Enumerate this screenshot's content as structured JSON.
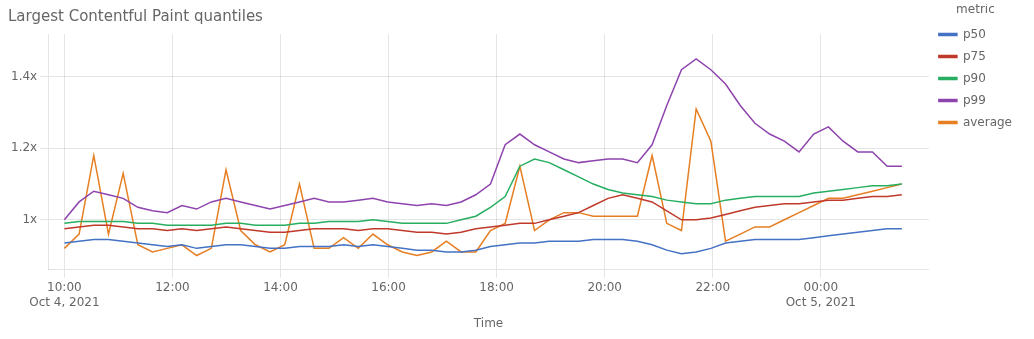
{
  "chart_data": {
    "type": "line",
    "title": "Largest Contentful Paint quantiles",
    "x_label": "Time",
    "legend_title": "metric",
    "legend": "right",
    "grid": true,
    "x": [
      10,
      10.27193,
      10.54386,
      10.815789,
      11.087719,
      11.359649,
      11.631579,
      11.903509,
      12.175439,
      12.447368,
      12.719298,
      12.991228,
      13.263158,
      13.535088,
      13.807018,
      14.078947,
      14.350877,
      14.622807,
      14.894737,
      15.166667,
      15.438596,
      15.710526,
      15.982456,
      16.254386,
      16.526316,
      16.798246,
      17.070175,
      17.342105,
      17.614035,
      17.885965,
      18.157895,
      18.429825,
      18.701754,
      18.973684,
      19.245614,
      19.517544,
      19.789474,
      20.061404,
      20.333333,
      20.605263,
      20.877193,
      21.149123,
      21.421053,
      21.692982,
      21.964912,
      22.236842,
      22.508772,
      22.780702,
      23.052632,
      23.324561,
      23.596491,
      23.868421,
      24.140351,
      24.412281,
      24.684211,
      24.95614,
      25.22807,
      25.5
    ],
    "xlim": [
      9.7,
      26.0
    ],
    "xticks": [
      {
        "value": 10,
        "label": "10:00"
      },
      {
        "value": 12,
        "label": "12:00"
      },
      {
        "value": 14,
        "label": "14:00"
      },
      {
        "value": 16,
        "label": "16:00"
      },
      {
        "value": 18,
        "label": "18:00"
      },
      {
        "value": 20,
        "label": "20:00"
      },
      {
        "value": 22,
        "label": "22:00"
      },
      {
        "value": 24,
        "label": "00:00"
      }
    ],
    "annotations": [
      {
        "x": 10,
        "text": "Oct 4, 2021"
      },
      {
        "x": 24,
        "text": "Oct 5, 2021"
      }
    ],
    "ylim": [
      0.86,
      1.52
    ],
    "yticks": [
      {
        "value": 1.0,
        "label": "1x"
      },
      {
        "value": 1.2,
        "label": "1.2x"
      },
      {
        "value": 1.4,
        "label": "1.4x"
      }
    ],
    "series": [
      {
        "name": "p50",
        "color": "#4472c4",
        "values": [
          0.935,
          0.94,
          0.945,
          0.945,
          0.94,
          0.935,
          0.93,
          0.925,
          0.93,
          0.92,
          0.925,
          0.93,
          0.93,
          0.925,
          0.92,
          0.92,
          0.925,
          0.925,
          0.925,
          0.93,
          0.925,
          0.93,
          0.925,
          0.92,
          0.915,
          0.915,
          0.91,
          0.91,
          0.915,
          0.925,
          0.93,
          0.935,
          0.935,
          0.94,
          0.94,
          0.94,
          0.945,
          0.945,
          0.945,
          0.94,
          0.93,
          0.915,
          0.905,
          0.91,
          0.92,
          0.935,
          0.94,
          0.945,
          0.945,
          0.945,
          0.945,
          0.95,
          0.955,
          0.96,
          0.965,
          0.97,
          0.975,
          0.975
        ]
      },
      {
        "name": "p75",
        "color": "#c0392b",
        "values": [
          0.975,
          0.98,
          0.985,
          0.985,
          0.98,
          0.975,
          0.975,
          0.97,
          0.975,
          0.97,
          0.975,
          0.98,
          0.975,
          0.97,
          0.965,
          0.965,
          0.97,
          0.975,
          0.975,
          0.975,
          0.97,
          0.975,
          0.975,
          0.97,
          0.965,
          0.965,
          0.96,
          0.965,
          0.975,
          0.98,
          0.985,
          0.99,
          0.99,
          1.0,
          1.01,
          1.02,
          1.04,
          1.06,
          1.07,
          1.06,
          1.05,
          1.025,
          1.0,
          1.0,
          1.005,
          1.015,
          1.025,
          1.035,
          1.04,
          1.045,
          1.045,
          1.05,
          1.055,
          1.055,
          1.06,
          1.065,
          1.065,
          1.07
        ]
      },
      {
        "name": "p90",
        "color": "#27ae60",
        "values": [
          0.99,
          0.995,
          0.995,
          0.995,
          0.995,
          0.99,
          0.99,
          0.985,
          0.985,
          0.985,
          0.985,
          0.99,
          0.99,
          0.985,
          0.985,
          0.985,
          0.99,
          0.99,
          0.995,
          0.995,
          0.995,
          1.0,
          0.995,
          0.99,
          0.99,
          0.99,
          0.99,
          1.0,
          1.01,
          1.035,
          1.065,
          1.15,
          1.17,
          1.16,
          1.14,
          1.12,
          1.1,
          1.085,
          1.075,
          1.07,
          1.065,
          1.055,
          1.05,
          1.045,
          1.045,
          1.055,
          1.06,
          1.065,
          1.065,
          1.065,
          1.065,
          1.075,
          1.08,
          1.085,
          1.09,
          1.095,
          1.095,
          1.1
        ]
      },
      {
        "name": "p99",
        "color": "#8e44ad",
        "values": [
          1.0,
          1.05,
          1.08,
          1.07,
          1.06,
          1.035,
          1.025,
          1.02,
          1.04,
          1.03,
          1.05,
          1.06,
          1.05,
          1.04,
          1.03,
          1.04,
          1.05,
          1.06,
          1.05,
          1.05,
          1.055,
          1.06,
          1.05,
          1.045,
          1.04,
          1.045,
          1.04,
          1.05,
          1.07,
          1.1,
          1.21,
          1.24,
          1.21,
          1.19,
          1.17,
          1.16,
          1.165,
          1.17,
          1.17,
          1.16,
          1.21,
          1.32,
          1.42,
          1.45,
          1.42,
          1.38,
          1.32,
          1.27,
          1.24,
          1.22,
          1.19,
          1.24,
          1.26,
          1.22,
          1.19,
          1.19,
          1.15,
          1.15
        ]
      },
      {
        "name": "average",
        "color": "#e67e22",
        "values": [
          0.92,
          0.96,
          1.18,
          0.96,
          1.13,
          0.93,
          0.91,
          0.92,
          0.93,
          0.9,
          0.92,
          1.14,
          0.97,
          0.93,
          0.91,
          0.93,
          1.1,
          0.92,
          0.92,
          0.95,
          0.92,
          0.96,
          0.93,
          0.91,
          0.9,
          0.91,
          0.94,
          0.91,
          0.91,
          0.97,
          0.99,
          1.15,
          0.97,
          1.0,
          1.02,
          1.02,
          1.01,
          1.01,
          1.01,
          1.01,
          1.18,
          0.99,
          0.97,
          1.31,
          1.22,
          0.94,
          0.96,
          0.98,
          0.98,
          1.0,
          1.02,
          1.04,
          1.06,
          1.06,
          1.07,
          1.08,
          1.09,
          1.1
        ]
      }
    ]
  }
}
